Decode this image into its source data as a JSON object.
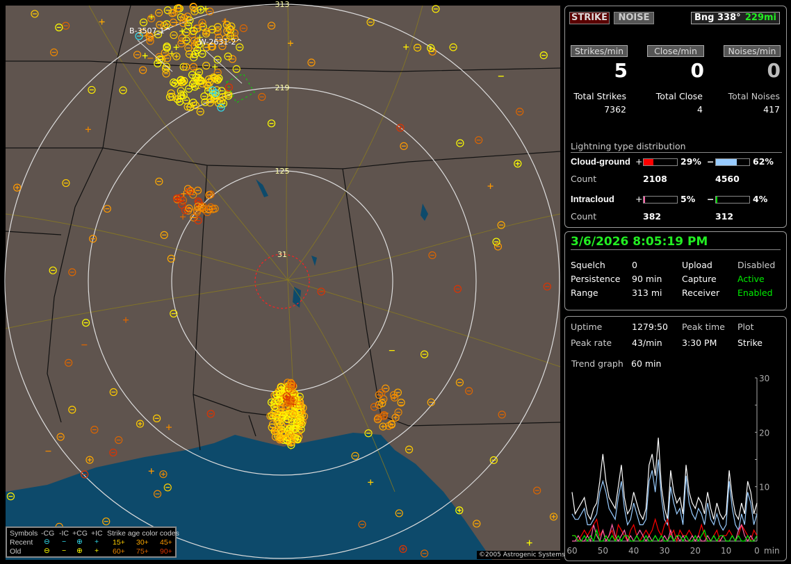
{
  "header": {
    "strike_label": "STRIKE",
    "noise_label": "NOISE",
    "bearing_label": "Bng 338°",
    "distance": "229mi"
  },
  "rates": [
    {
      "label": "Strikes/min",
      "value": "5",
      "total_label": "Total Strikes",
      "total": "7362"
    },
    {
      "label": "Close/min",
      "value": "0",
      "total_label": "Total Close",
      "total": "4"
    },
    {
      "label": "Noises/min",
      "value": "0",
      "total_label": "Total Noises",
      "total": "417"
    }
  ],
  "distribution": {
    "title": "Lightning type distribution",
    "count_label": "Count",
    "rows": [
      {
        "name": "Cloud-ground",
        "pos_sign": "+",
        "pos_pct": "29%",
        "pos_value": 29,
        "pos_color": "#ff0000",
        "neg_sign": "−",
        "neg_pct": "62%",
        "neg_value": 62,
        "neg_color": "#99ccff",
        "pos_count": "2108",
        "neg_count": "4560"
      },
      {
        "name": "Intracloud",
        "pos_sign": "+",
        "pos_pct": "5%",
        "pos_value": 5,
        "pos_color": "#ff66aa",
        "neg_sign": "−",
        "neg_pct": "4%",
        "neg_value": 4,
        "neg_color": "#00dd00",
        "pos_count": "382",
        "neg_count": "312"
      }
    ]
  },
  "status": {
    "datetime": "3/6/2026 8:05:19 PM",
    "rows": [
      {
        "k1": "Squelch",
        "v1": "0",
        "k2": "Upload",
        "v2": "Disabled",
        "v2_color": "#cccccc"
      },
      {
        "k1": "Persistence",
        "v1": "90 min",
        "k2": "Capture",
        "v2": "Active",
        "v2_color": "#00ee00"
      },
      {
        "k1": "Range",
        "v1": "313 mi",
        "k2": "Receiver",
        "v2": "Enabled",
        "v2_color": "#00ee00"
      }
    ]
  },
  "stats": {
    "uptime_label": "Uptime",
    "uptime": "1279:50",
    "peak_time_label": "Peak time",
    "plot_label": "Plot",
    "peak_rate_label": "Peak rate",
    "peak_rate": "43/min",
    "peak_time": "3:30 PM",
    "plot": "Strike",
    "trend_label": "Trend graph",
    "trend": "60 min"
  },
  "chart_data": {
    "type": "line",
    "xlabel": "min",
    "x_ticks": [
      "60",
      "50",
      "40",
      "30",
      "20",
      "10",
      "0"
    ],
    "y_ticks": [
      "10",
      "20",
      "30"
    ],
    "xlim": [
      60,
      0
    ],
    "ylim": [
      0,
      30
    ],
    "series": [
      {
        "color": "#ffffff",
        "values": [
          9,
          5,
          6,
          7,
          8,
          5,
          4,
          6,
          7,
          11,
          16,
          11,
          8,
          7,
          6,
          10,
          14,
          8,
          5,
          6,
          9,
          7,
          5,
          4,
          6,
          14,
          16,
          12,
          19,
          10,
          6,
          4,
          13,
          9,
          7,
          8,
          5,
          14,
          9,
          7,
          6,
          8,
          7,
          5,
          9,
          6,
          4,
          7,
          5,
          4,
          5,
          13,
          8,
          5,
          4,
          7,
          5,
          11,
          9,
          5,
          7
        ]
      },
      {
        "color": "#99ccff",
        "values": [
          5,
          4,
          4,
          5,
          6,
          3,
          3,
          4,
          5,
          9,
          11,
          9,
          6,
          5,
          4,
          8,
          11,
          6,
          3,
          4,
          7,
          5,
          3,
          3,
          4,
          11,
          13,
          9,
          15,
          8,
          4,
          3,
          10,
          7,
          5,
          6,
          3,
          12,
          7,
          5,
          4,
          6,
          5,
          3,
          7,
          4,
          3,
          5,
          3,
          2,
          3,
          11,
          6,
          3,
          2,
          5,
          3,
          9,
          7,
          3,
          5
        ]
      },
      {
        "color": "#ff0000",
        "values": [
          1,
          1,
          0,
          1,
          2,
          1,
          2,
          3,
          4,
          1,
          2,
          0,
          1,
          2,
          0,
          3,
          2,
          1,
          0,
          2,
          3,
          1,
          0,
          1,
          2,
          1,
          2,
          4,
          2,
          1,
          3,
          4,
          1,
          2,
          0,
          2,
          1,
          1,
          2,
          1,
          0,
          1,
          3,
          1,
          0,
          0,
          1,
          2,
          0,
          1,
          1,
          2,
          1,
          0,
          1,
          3,
          2,
          1,
          0,
          2,
          1
        ]
      },
      {
        "color": "#ff66aa",
        "values": [
          0,
          0,
          1,
          0,
          0,
          1,
          0,
          3,
          1,
          0,
          2,
          0,
          1,
          3,
          1,
          0,
          1,
          2,
          0,
          1,
          0,
          1,
          2,
          1,
          0,
          1,
          0,
          1,
          0,
          0,
          1,
          0,
          2,
          0,
          1,
          0,
          1,
          0,
          0,
          1,
          0,
          1,
          0,
          0,
          1,
          0,
          1,
          0,
          0,
          1,
          0,
          0,
          1,
          0,
          2,
          3,
          1,
          0,
          1,
          0,
          1
        ]
      },
      {
        "color": "#00ee00",
        "values": [
          1,
          1,
          0,
          0,
          1,
          0,
          1,
          0,
          2,
          0,
          0,
          1,
          0,
          1,
          0,
          1,
          0,
          1,
          1,
          0,
          0,
          1,
          0,
          0,
          1,
          0,
          0,
          1,
          0,
          1,
          0,
          0,
          1,
          0,
          1,
          1,
          0,
          1,
          0,
          0,
          1,
          0,
          1,
          2,
          0,
          0,
          1,
          0,
          1,
          1,
          0,
          0,
          1,
          0,
          1,
          0,
          0,
          1,
          0,
          0,
          1
        ]
      }
    ]
  },
  "map": {
    "rings": [
      "31",
      "125",
      "219",
      "313"
    ],
    "ring_color": "#dddddd",
    "close_ring_color": "#ff2020",
    "land_color": "#5f544e",
    "water_color": "#0d4a6b",
    "station_labels": [
      "B-3507-1^",
      "W-2631-2^"
    ],
    "copyright": "©2005 Astrogenic Systems"
  },
  "legend": {
    "symbols_label": "Symbols",
    "cols": [
      "-CG",
      "-IC",
      "+CG",
      "+IC"
    ],
    "age_label": "Strike age color codes",
    "recent_label": "Recent",
    "old_label": "Old",
    "recent_ages": [
      "15+",
      "30+",
      "45+"
    ],
    "old_ages": [
      "60+",
      "75+",
      "90+"
    ],
    "recent_color": "#33ddee",
    "old_color": "#ffff00",
    "age_colors": [
      "#ffcc00",
      "#ffaa00",
      "#ff9900",
      "#ee8800",
      "#dd6600",
      "#dd3300"
    ]
  }
}
